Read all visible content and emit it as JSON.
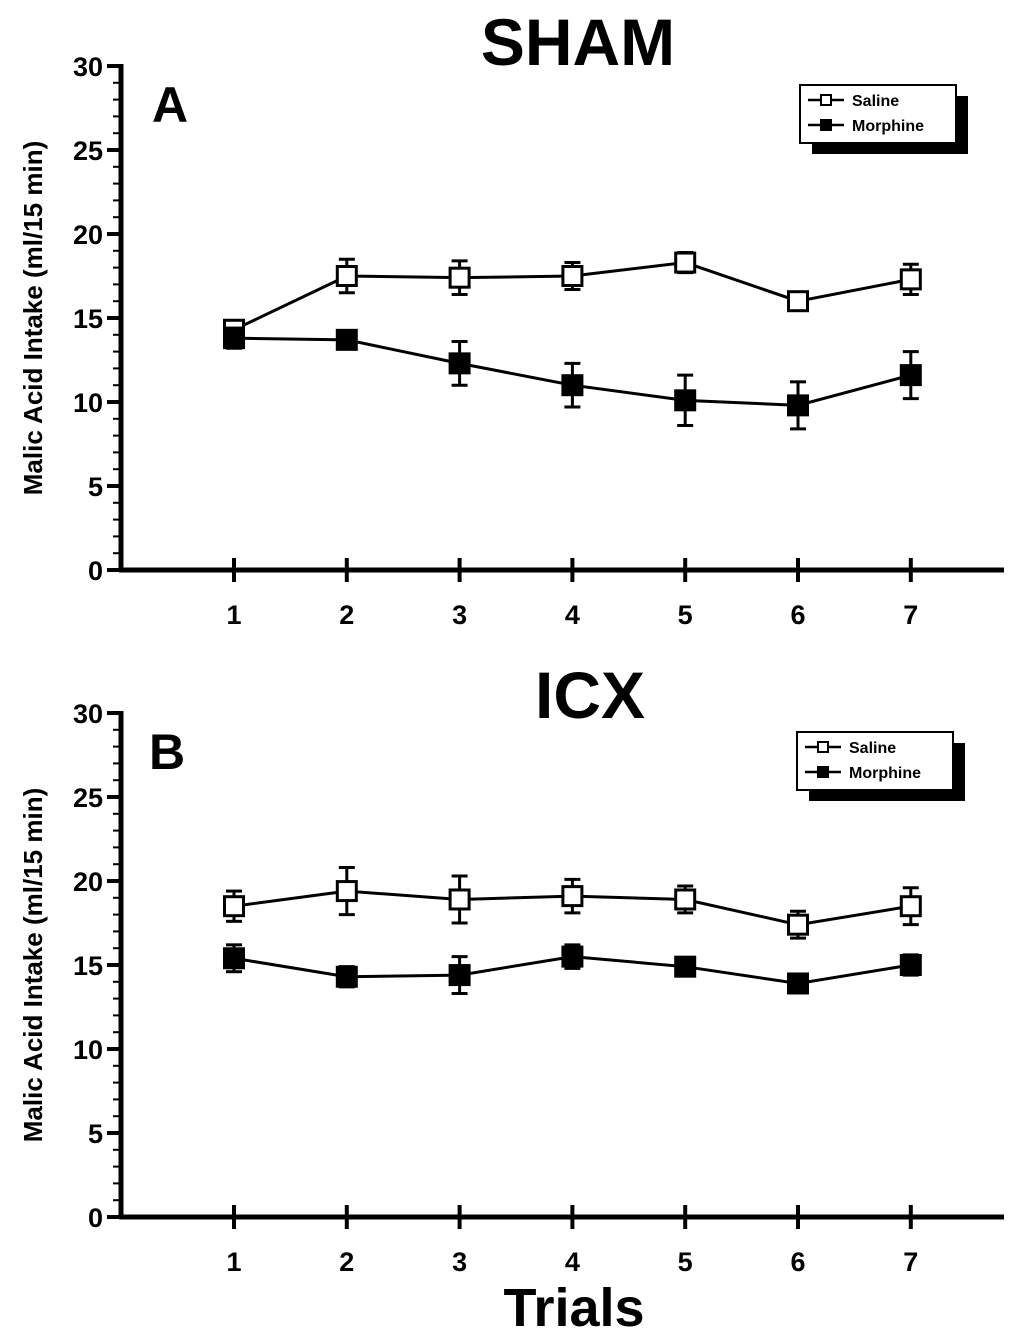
{
  "figure": {
    "xlabel": "Trials",
    "ylabel": "Malic Acid Intake (ml/15 min)"
  },
  "chart_data": [
    {
      "type": "line",
      "panel": "A",
      "title": "SHAM",
      "xlabel": "",
      "ylabel": "Malic Acid Intake (ml/15 min)",
      "x": [
        1,
        2,
        3,
        4,
        5,
        6,
        7
      ],
      "xlim": [
        0.2,
        7.8
      ],
      "ylim": [
        0,
        30
      ],
      "yticks": [
        0,
        5,
        10,
        15,
        20,
        25,
        30
      ],
      "legend": "top-right",
      "series": [
        {
          "name": "Saline",
          "marker": "open-square",
          "color": "#000000",
          "values": [
            14.3,
            17.5,
            17.4,
            17.5,
            18.3,
            16.0,
            17.3
          ],
          "errors": [
            0.5,
            1.0,
            1.0,
            0.8,
            0.6,
            0.4,
            0.9
          ]
        },
        {
          "name": "Morphine",
          "marker": "filled-square",
          "color": "#000000",
          "values": [
            13.8,
            13.7,
            12.3,
            11.0,
            10.1,
            9.8,
            11.6
          ],
          "errors": [
            0.6,
            0.5,
            1.3,
            1.3,
            1.5,
            1.4,
            1.4
          ]
        }
      ]
    },
    {
      "type": "line",
      "panel": "B",
      "title": "ICX",
      "xlabel": "Trials",
      "ylabel": "Malic Acid Intake (ml/15 min)",
      "x": [
        1,
        2,
        3,
        4,
        5,
        6,
        7
      ],
      "xlim": [
        0.2,
        7.8
      ],
      "ylim": [
        0,
        30
      ],
      "yticks": [
        0,
        5,
        10,
        15,
        20,
        25,
        30
      ],
      "legend": "top-right",
      "series": [
        {
          "name": "Saline",
          "marker": "open-square",
          "color": "#000000",
          "values": [
            18.5,
            19.4,
            18.9,
            19.1,
            18.9,
            17.4,
            18.5
          ],
          "errors": [
            0.9,
            1.4,
            1.4,
            1.0,
            0.8,
            0.8,
            1.1
          ]
        },
        {
          "name": "Morphine",
          "marker": "filled-square",
          "color": "#000000",
          "values": [
            15.4,
            14.3,
            14.4,
            15.5,
            14.9,
            13.9,
            15.0
          ],
          "errors": [
            0.8,
            0.6,
            1.1,
            0.7,
            0.5,
            0.5,
            0.6
          ]
        }
      ]
    }
  ]
}
